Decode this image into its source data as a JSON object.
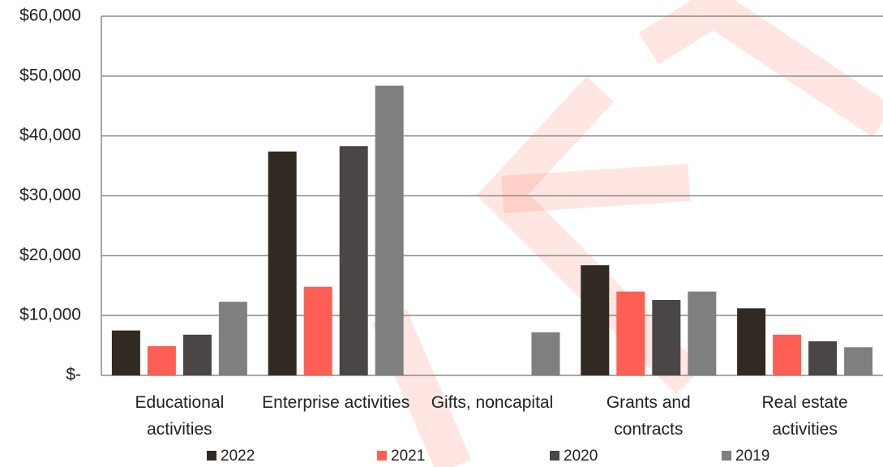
{
  "chart_data": {
    "type": "bar",
    "categories": [
      "Educational activities",
      "Enterprise activities",
      "Gifts, noncapital",
      "Grants and contracts",
      "Real estate activities"
    ],
    "series": [
      {
        "name": "2022",
        "color": "#312a22",
        "values": [
          7500,
          37400,
          0,
          18400,
          11200
        ]
      },
      {
        "name": "2021",
        "color": "#fe5f55",
        "values": [
          4900,
          14800,
          0,
          14000,
          6800
        ]
      },
      {
        "name": "2020",
        "color": "#4a4645",
        "values": [
          6800,
          38300,
          0,
          12600,
          5700
        ]
      },
      {
        "name": "2019",
        "color": "#7f7f7f",
        "values": [
          12300,
          48400,
          7200,
          14000,
          4700
        ]
      }
    ],
    "ylim": [
      0,
      60000
    ],
    "yticks": [
      {
        "value": 0,
        "label": "$-"
      },
      {
        "value": 10000,
        "label": "$10,000"
      },
      {
        "value": 20000,
        "label": "$20,000"
      },
      {
        "value": 30000,
        "label": "$30,000"
      },
      {
        "value": 40000,
        "label": "$40,000"
      },
      {
        "value": 50000,
        "label": "$50,000"
      },
      {
        "value": 60000,
        "label": "$60,000"
      }
    ],
    "grid": true,
    "legend": "bottom"
  }
}
